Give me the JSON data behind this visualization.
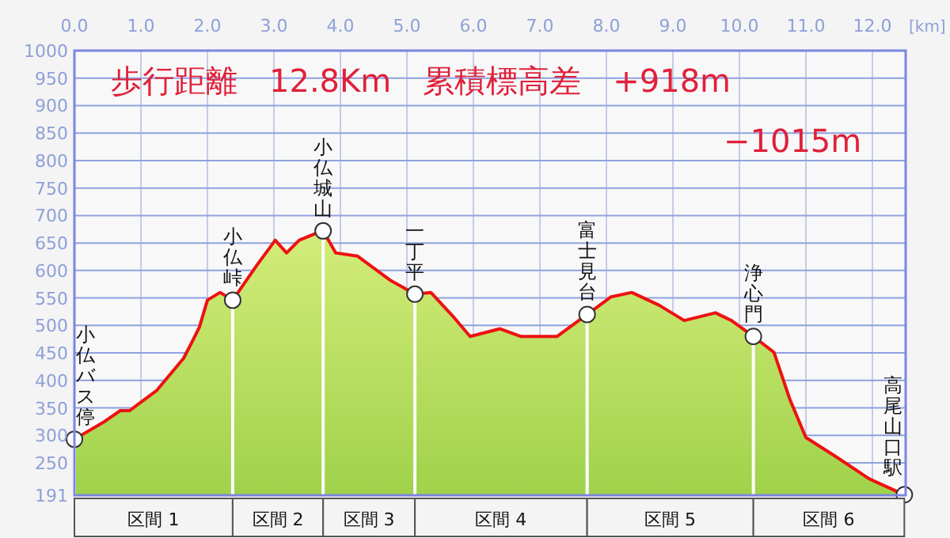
{
  "chart_data": {
    "type": "area",
    "title": "歩行距離　12.8Km　累積標高差　+918m",
    "subtitle": "−1015m",
    "xlabel": "[km]",
    "xlim": [
      0,
      12.5
    ],
    "xticks": [
      {
        "value": 0,
        "label": "0.0"
      },
      {
        "value": 1,
        "label": "1.0"
      },
      {
        "value": 2,
        "label": "2.0"
      },
      {
        "value": 3,
        "label": "3.0"
      },
      {
        "value": 4,
        "label": "4.0"
      },
      {
        "value": 5,
        "label": "5.0"
      },
      {
        "value": 6,
        "label": "6.0"
      },
      {
        "value": 7,
        "label": "7.0"
      },
      {
        "value": 8,
        "label": "8.0"
      },
      {
        "value": 9,
        "label": "9.0"
      },
      {
        "value": 10,
        "label": "10.0"
      },
      {
        "value": 11,
        "label": "11.0"
      },
      {
        "value": 12,
        "label": "12.0"
      }
    ],
    "ylim": [
      191,
      1000
    ],
    "yticks": [
      191,
      250,
      300,
      350,
      400,
      450,
      500,
      550,
      600,
      650,
      700,
      750,
      800,
      850,
      900,
      950,
      1000
    ],
    "grid": true,
    "series": [
      {
        "color": "#ee1111",
        "x": [
          0,
          0.45,
          0.69,
          0.83,
          1.24,
          1.64,
          1.76,
          1.88,
          2.0,
          2.19,
          2.38,
          2.74,
          3.02,
          3.19,
          3.38,
          3.62,
          3.74,
          3.93,
          4.26,
          4.74,
          5.12,
          5.36,
          5.69,
          5.95,
          6.4,
          6.71,
          7.26,
          7.71,
          8.07,
          8.38,
          8.79,
          9.17,
          9.64,
          9.88,
          10.21,
          10.52,
          10.76,
          11.0,
          11.48,
          11.95,
          12.48
        ],
        "values": [
          293,
          325,
          345,
          345,
          382,
          440,
          468,
          497,
          546,
          560,
          546,
          609,
          655,
          632,
          655,
          667,
          672,
          632,
          626,
          583,
          557,
          560,
          517,
          480,
          494,
          480,
          480,
          520,
          552,
          560,
          537,
          509,
          523,
          509,
          480,
          451,
          365,
          296,
          259,
          221,
          192
        ]
      }
    ],
    "ref_lines": [
      {
        "axis": "x",
        "value": 0,
        "label": "小仏バス停",
        "color": "#ffffff"
      },
      {
        "axis": "x",
        "value": 2.38,
        "label": "小仏峠",
        "color": "#ffffff"
      },
      {
        "axis": "x",
        "value": 3.74,
        "label": "小仏城山",
        "color": "#ffffff"
      },
      {
        "axis": "x",
        "value": 5.12,
        "label": "一丁平",
        "color": "#ffffff"
      },
      {
        "axis": "x",
        "value": 7.71,
        "label": "富士見台",
        "color": "#ffffff"
      },
      {
        "axis": "x",
        "value": 10.21,
        "label": "浄心門",
        "color": "#ffffff"
      }
    ],
    "annotations": [
      {
        "text": "高尾山口駅",
        "x": 12.48,
        "y": 192
      },
      "区間 1",
      "区間 2",
      "区間 3",
      "区間 4",
      "区間 5",
      "区間 6"
    ]
  }
}
